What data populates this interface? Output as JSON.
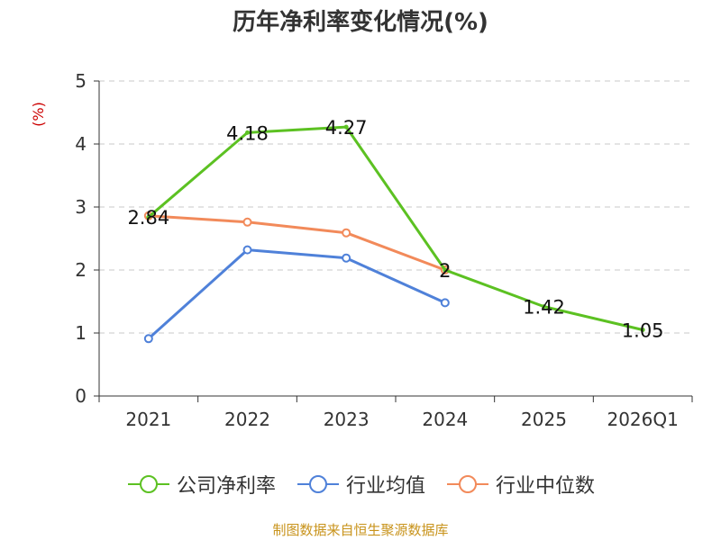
{
  "chart_data": {
    "type": "line",
    "title": "历年净利率变化情况(%)",
    "ylabel": "(%)",
    "categories": [
      "2021",
      "2022",
      "2023",
      "2024",
      "2025",
      "2026Q1"
    ],
    "ylim": [
      0,
      5
    ],
    "yticks": [
      0,
      1,
      2,
      3,
      4,
      5
    ],
    "grid": true,
    "legend_position": "bottom",
    "series": [
      {
        "name": "公司净利率",
        "color": "#5cc122",
        "values": [
          2.84,
          4.18,
          4.27,
          2.0,
          1.42,
          1.05
        ],
        "labels": [
          "2.84",
          "4.18",
          "4.27",
          "2",
          "1.42",
          "1.05"
        ],
        "markers": false
      },
      {
        "name": "行业均值",
        "color": "#4f81d9",
        "values": [
          0.91,
          2.32,
          2.19,
          1.48,
          null,
          null
        ],
        "markers": true
      },
      {
        "name": "行业中位数",
        "color": "#f28a5a",
        "values": [
          2.86,
          2.76,
          2.59,
          2.0,
          null,
          null
        ],
        "markers": true
      }
    ]
  },
  "footer": {
    "source": "制图数据来自恒生聚源数据库"
  }
}
